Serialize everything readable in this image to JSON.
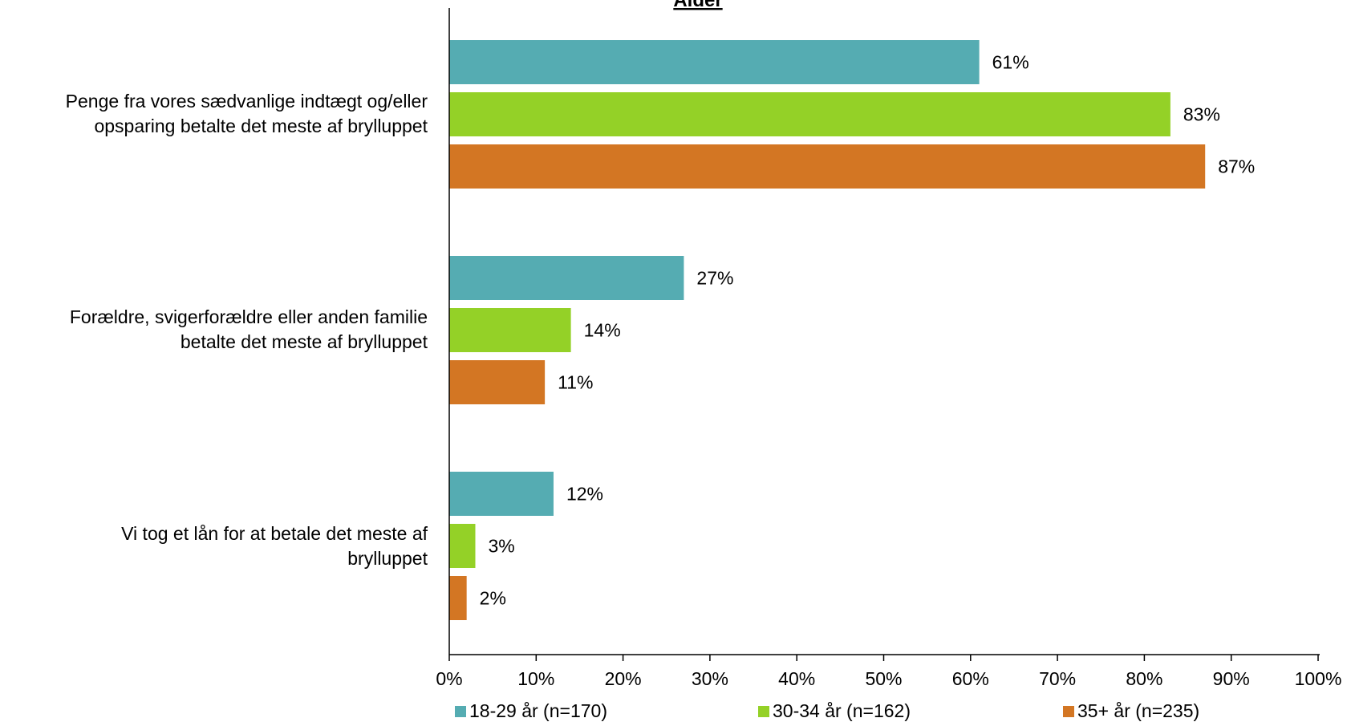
{
  "chart_data": {
    "type": "bar",
    "orientation": "horizontal",
    "title": "Alder",
    "categories": [
      "Penge fra vores sædvanlige indtægt og/eller opsparing betalte det meste af brylluppet",
      "Forældre, svigerforældre eller anden familie betalte det meste af brylluppet",
      "Vi tog et lån for at betale det meste af brylluppet"
    ],
    "series": [
      {
        "name": "18-29 år (n=170)",
        "color": "#55ACB2",
        "values": [
          61,
          27,
          12
        ]
      },
      {
        "name": "30-34 år (n=162)",
        "color": "#94D127",
        "values": [
          83,
          14,
          3
        ]
      },
      {
        "name": "35+ år (n=235)",
        "color": "#D37623",
        "values": [
          87,
          11,
          2
        ]
      }
    ],
    "xlim": [
      0,
      100
    ],
    "xticks": [
      "0%",
      "10%",
      "20%",
      "30%",
      "40%",
      "50%",
      "60%",
      "70%",
      "80%",
      "90%",
      "100%"
    ],
    "data_labels": [
      [
        "61%",
        "27%",
        "12%"
      ],
      [
        "83%",
        "14%",
        "3%"
      ],
      [
        "87%",
        "11%",
        "2%"
      ]
    ],
    "grid": false,
    "legend_position": "bottom"
  },
  "category_lines": [
    [
      "Penge fra vores sædvanlige indtægt og/eller",
      "opsparing betalte det meste af brylluppet"
    ],
    [
      "Forældre, svigerforældre eller anden familie",
      "betalte det meste af brylluppet"
    ],
    [
      "Vi tog et lån for at betale det meste af",
      "brylluppet"
    ]
  ]
}
